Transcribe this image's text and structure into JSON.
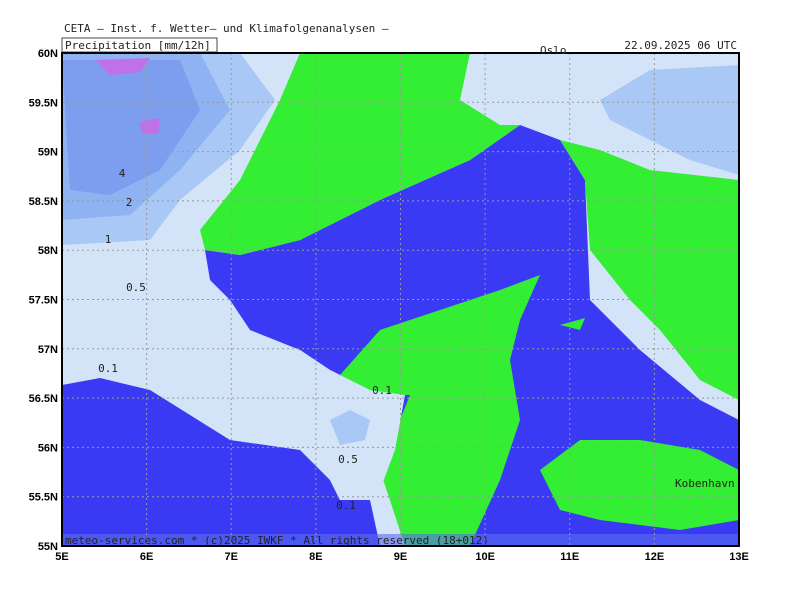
{
  "header": {
    "title": "CETA — Inst. f. Wetter— und Klimafolgenanalysen —",
    "field": "Precipitation [mm/12h]",
    "date": "22.09.2025 06 UTC"
  },
  "footer": "meteo-services.com * (c)2025 IWKF * All rights reserved (18+012)",
  "axes": {
    "y_labels": [
      "60N",
      "59.5N",
      "59N",
      "58.5N",
      "58N",
      "57.5N",
      "57N",
      "56.5N",
      "56N",
      "55.5N",
      "55N"
    ],
    "x_labels": [
      "5E",
      "6E",
      "7E",
      "8E",
      "9E",
      "10E",
      "11E",
      "12E",
      "13E"
    ]
  },
  "places": [
    "Oslo",
    "Kobenhavn"
  ],
  "contour_labels": [
    "4",
    "2",
    "1",
    "0.5",
    "0.1",
    "0.1",
    "0.5",
    "0.1"
  ]
}
